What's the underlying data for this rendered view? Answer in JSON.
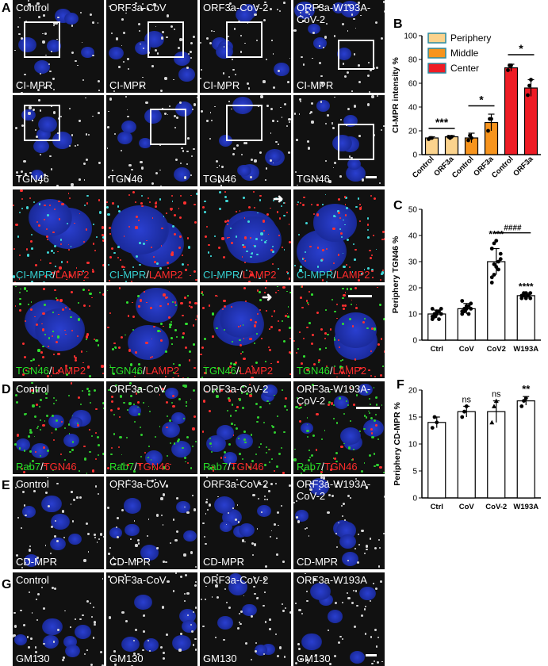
{
  "panel_letters": {
    "A": "A",
    "B": "B",
    "C": "C",
    "D": "D",
    "E": "E",
    "F": "F",
    "G": "G"
  },
  "row_A1": {
    "tiles": [
      {
        "top_label": "Control",
        "bottom_label": "CI-MPR"
      },
      {
        "top_label": "ORF3a-CoV",
        "bottom_label": "CI-MPR"
      },
      {
        "top_label": "ORF3a-CoV-2",
        "bottom_label": "CI-MPR"
      },
      {
        "top_label": "ORF3a-W193A-\nCoV-2",
        "bottom_label": "CI-MPR"
      }
    ]
  },
  "row_A2": {
    "tiles": [
      {
        "bottom_label": "TGN46"
      },
      {
        "bottom_label": "TGN46"
      },
      {
        "bottom_label": "TGN46"
      },
      {
        "bottom_label": "TGN46"
      }
    ]
  },
  "row_A3": {
    "label_a": "CI-MPR",
    "sep": "/",
    "label_b": "LAMP2",
    "color_a": "#35d0d0",
    "color_b": "#ff2b2b"
  },
  "row_A4": {
    "label_a": "TGN46",
    "sep": "/",
    "label_b": "LAMP2",
    "color_a": "#27e027",
    "color_b": "#ff2b2b"
  },
  "row_D": {
    "tiles": [
      {
        "top_label": "Control"
      },
      {
        "top_label": "ORF3a-CoV"
      },
      {
        "top_label": "ORF3a-CoV-2"
      },
      {
        "top_label": "ORF3a-W193A-\nCoV-2"
      }
    ],
    "label_a": "Rab7",
    "sep": "/",
    "label_b": "TGN46",
    "color_a": "#27e027",
    "color_b": "#ff2b2b"
  },
  "row_E": {
    "tiles": [
      {
        "top_label": "Control",
        "bottom_label": "CD-MPR"
      },
      {
        "top_label": "ORF3a-CoV",
        "bottom_label": "CD-MPR"
      },
      {
        "top_label": "ORF3a-CoV-2",
        "bottom_label": "CD-MPR"
      },
      {
        "top_label": "ORF3a-W193A-\nCoV-2",
        "bottom_label": "CD-MPR"
      }
    ]
  },
  "row_G": {
    "tiles": [
      {
        "top_label": "Control",
        "bottom_label": "GM130"
      },
      {
        "top_label": "ORF3a-CoV",
        "bottom_label": "GM130"
      },
      {
        "top_label": "ORF3a-CoV-2",
        "bottom_label": "GM130"
      },
      {
        "top_label": "ORF3a-W193A",
        "bottom_label": "GM130"
      }
    ]
  },
  "chart_data": [
    {
      "panel": "B",
      "type": "bar",
      "ylabel": "CI-MPR intensity %",
      "ylim": [
        0,
        100
      ],
      "yticks": [
        0,
        20,
        40,
        60,
        80,
        100
      ],
      "categories": [
        "Control",
        "ORF3a",
        "Control",
        "ORF3a",
        "Control",
        "ORF3a"
      ],
      "values": [
        14,
        15,
        14,
        27,
        73,
        56
      ],
      "errors": [
        1,
        1,
        4,
        7,
        3,
        7
      ],
      "points": [
        [
          13,
          14,
          14
        ],
        [
          15,
          14,
          15
        ],
        [
          12,
          16,
          14
        ],
        [
          20,
          30,
          30
        ],
        [
          71,
          75,
          75
        ],
        [
          50,
          58,
          63
        ]
      ],
      "groups": [
        "Periphery",
        "Periphery",
        "Middle",
        "Middle",
        "Center",
        "Center"
      ],
      "legend": [
        {
          "name": "Periphery",
          "color": "#fbd38d"
        },
        {
          "name": "Middle",
          "color": "#f7941d"
        },
        {
          "name": "Center",
          "color": "#ee1c25"
        }
      ],
      "legend_position": "top-left",
      "significance": [
        "***",
        "*",
        "*"
      ]
    },
    {
      "panel": "C",
      "type": "bar",
      "ylabel": "Periphery TGN46 %",
      "ylim": [
        0,
        50
      ],
      "yticks": [
        0,
        10,
        20,
        30,
        40,
        50
      ],
      "categories": [
        "Ctrl",
        "CoV",
        "CoV2",
        "W193A"
      ],
      "values": [
        10,
        12,
        30,
        17
      ],
      "errors": [
        1.5,
        2,
        5,
        1
      ],
      "points": [
        [
          8,
          9,
          10,
          11,
          12,
          9,
          10,
          11,
          8,
          10,
          12,
          9
        ],
        [
          10,
          11,
          12,
          13,
          14,
          11,
          12,
          13,
          10,
          12,
          15,
          11
        ],
        [
          22,
          25,
          28,
          30,
          33,
          35,
          37,
          38,
          27,
          31,
          24,
          29
        ],
        [
          16,
          17,
          18,
          17,
          16,
          17,
          18,
          16,
          17,
          18
        ]
      ],
      "significance": [
        "",
        "",
        "****",
        "****"
      ],
      "bracket_label": "####"
    },
    {
      "panel": "F",
      "type": "bar",
      "ylabel": "Periphery CD-MPR %",
      "ylim": [
        0,
        20
      ],
      "yticks": [
        0,
        5,
        10,
        15,
        20
      ],
      "categories": [
        "Ctrl",
        "CoV",
        "CoV-2",
        "W193A"
      ],
      "values": [
        14,
        16,
        16,
        18
      ],
      "errors": [
        1,
        1,
        2,
        0.8
      ],
      "points": [
        [
          13,
          15,
          14
        ],
        [
          15,
          16,
          17
        ],
        [
          14,
          17,
          18
        ],
        [
          17,
          18,
          18.5
        ]
      ],
      "significance": [
        "",
        "ns",
        "ns",
        "**"
      ]
    }
  ]
}
